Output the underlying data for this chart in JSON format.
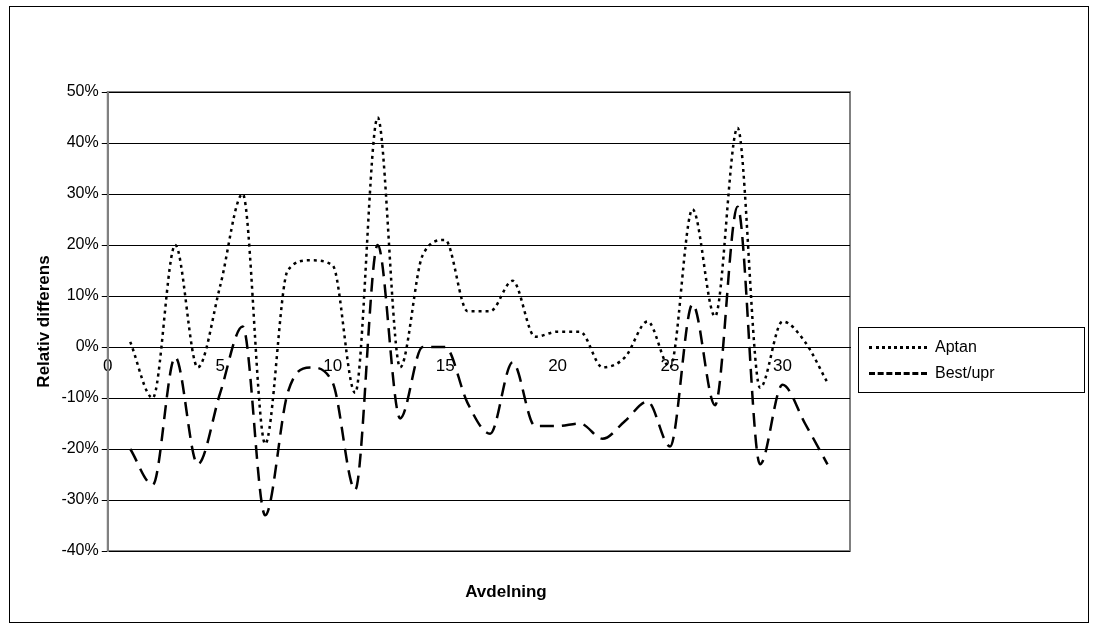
{
  "chart_data": {
    "type": "line",
    "xlabel": "Avdelning",
    "ylabel": "Relativ differens",
    "xlim": [
      0,
      33
    ],
    "xticks": [
      0,
      5,
      10,
      15,
      20,
      25,
      30
    ],
    "ylim": [
      -40,
      50
    ],
    "yticks": [
      {
        "value": -40,
        "label": "-40%"
      },
      {
        "value": -30,
        "label": "-30%"
      },
      {
        "value": -20,
        "label": "-20%"
      },
      {
        "value": -10,
        "label": "-10%"
      },
      {
        "value": 0,
        "label": "0%"
      },
      {
        "value": 10,
        "label": "10%"
      },
      {
        "value": 20,
        "label": "20%"
      },
      {
        "value": 30,
        "label": "30%"
      },
      {
        "value": 40,
        "label": "40%"
      },
      {
        "value": 50,
        "label": "50%"
      }
    ],
    "x": [
      1,
      2,
      3,
      4,
      5,
      6,
      7,
      8,
      9,
      10,
      11,
      12,
      13,
      14,
      15,
      16,
      17,
      18,
      19,
      20,
      21,
      22,
      23,
      24,
      25,
      26,
      27,
      28,
      29,
      30,
      31,
      32
    ],
    "series": [
      {
        "name": "Aptan",
        "color": "#000000",
        "line_style": "dotted",
        "values": [
          1,
          -10,
          20,
          -4,
          12,
          30,
          -19,
          15,
          17,
          16,
          -9,
          45,
          -4,
          18,
          21,
          7,
          7,
          13,
          2,
          3,
          3,
          -4,
          -2,
          5,
          -4,
          27,
          6,
          43,
          -8,
          5,
          1,
          -7
        ]
      },
      {
        "name": "Best/upr",
        "color": "#000000",
        "line_style": "dashed",
        "values": [
          -20,
          -27,
          -2,
          -23,
          -9,
          4,
          -33,
          -9,
          -4,
          -7,
          -28,
          20,
          -14,
          0,
          0,
          -11,
          -17,
          -3,
          -15.5,
          -15.5,
          -15,
          -18,
          -14.5,
          -10.7,
          -19.5,
          8.4,
          -11.4,
          27.5,
          -23,
          -7.4,
          -15,
          -23
        ]
      }
    ],
    "grid": "y",
    "legend": "right",
    "marker": "none"
  }
}
